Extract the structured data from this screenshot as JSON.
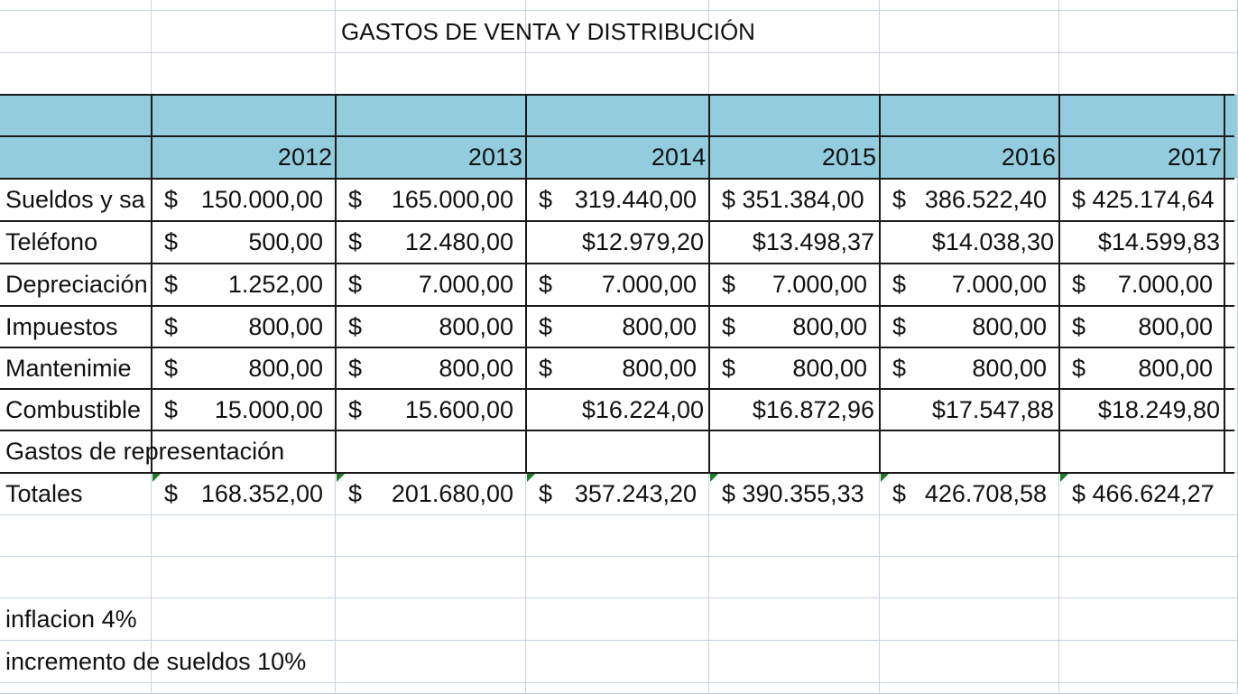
{
  "sheet": {
    "title": "GASTOS DE VENTA Y DISTRIBUCIÓN",
    "header_fill": "#93cddd",
    "error_marker_color": "#1f7a2a",
    "years": [
      "2012",
      "2013",
      "2014",
      "2015",
      "2016",
      "2017"
    ],
    "rows": [
      {
        "label": "Sueldos y sa",
        "cells": [
          {
            "style": "money",
            "sym": "$",
            "amt": "150.000,00"
          },
          {
            "style": "money",
            "sym": "$",
            "amt": "165.000,00"
          },
          {
            "style": "money",
            "sym": "$",
            "amt": "319.440,00"
          },
          {
            "style": "compact",
            "text": "$ 351.384,00"
          },
          {
            "style": "money",
            "sym": "$",
            "amt": "386.522,40"
          },
          {
            "style": "compact",
            "text": "$ 425.174,64"
          }
        ]
      },
      {
        "label": "Teléfono",
        "cells": [
          {
            "style": "money",
            "sym": "$",
            "amt": "500,00"
          },
          {
            "style": "money",
            "sym": "$",
            "amt": "12.480,00"
          },
          {
            "style": "plain",
            "text": "$12.979,20"
          },
          {
            "style": "plain",
            "text": "$13.498,37"
          },
          {
            "style": "plain",
            "text": "$14.038,30"
          },
          {
            "style": "plain",
            "text": "$14.599,83"
          }
        ]
      },
      {
        "label": "Depreciación",
        "cells": [
          {
            "style": "money",
            "sym": "$",
            "amt": "1.252,00"
          },
          {
            "style": "money",
            "sym": "$",
            "amt": "7.000,00"
          },
          {
            "style": "money",
            "sym": "$",
            "amt": "7.000,00"
          },
          {
            "style": "money",
            "sym": "$",
            "amt": "7.000,00"
          },
          {
            "style": "money",
            "sym": "$",
            "amt": "7.000,00"
          },
          {
            "style": "money",
            "sym": "$",
            "amt": "7.000,00"
          }
        ]
      },
      {
        "label": "Impuestos",
        "cells": [
          {
            "style": "money",
            "sym": "$",
            "amt": "800,00"
          },
          {
            "style": "money",
            "sym": "$",
            "amt": "800,00"
          },
          {
            "style": "money",
            "sym": "$",
            "amt": "800,00"
          },
          {
            "style": "money",
            "sym": "$",
            "amt": "800,00"
          },
          {
            "style": "money",
            "sym": "$",
            "amt": "800,00"
          },
          {
            "style": "money",
            "sym": "$",
            "amt": "800,00"
          }
        ]
      },
      {
        "label": "Mantenimie",
        "cells": [
          {
            "style": "money",
            "sym": "$",
            "amt": "800,00"
          },
          {
            "style": "money",
            "sym": "$",
            "amt": "800,00"
          },
          {
            "style": "money",
            "sym": "$",
            "amt": "800,00"
          },
          {
            "style": "money",
            "sym": "$",
            "amt": "800,00"
          },
          {
            "style": "money",
            "sym": "$",
            "amt": "800,00"
          },
          {
            "style": "money",
            "sym": "$",
            "amt": "800,00"
          }
        ]
      },
      {
        "label": "Combustible",
        "cells": [
          {
            "style": "money",
            "sym": "$",
            "amt": "15.000,00"
          },
          {
            "style": "money",
            "sym": "$",
            "amt": "15.600,00"
          },
          {
            "style": "plain",
            "text": "$16.224,00"
          },
          {
            "style": "plain",
            "text": "$16.872,96"
          },
          {
            "style": "plain",
            "text": "$17.547,88"
          },
          {
            "style": "plain",
            "text": "$18.249,80"
          }
        ]
      },
      {
        "label": "Gastos de representación",
        "cells": []
      },
      {
        "label": "Totales",
        "marked": true,
        "cells": [
          {
            "style": "money",
            "sym": "$",
            "amt": "168.352,00"
          },
          {
            "style": "money",
            "sym": "$",
            "amt": "201.680,00"
          },
          {
            "style": "money",
            "sym": "$",
            "amt": "357.243,20"
          },
          {
            "style": "compact",
            "text": "$ 390.355,33"
          },
          {
            "style": "money",
            "sym": "$",
            "amt": "426.708,58"
          },
          {
            "style": "compact",
            "text": "$ 466.624,27"
          }
        ]
      }
    ],
    "notes": [
      "inflacion 4%",
      "incremento de sueldos 10%"
    ]
  }
}
